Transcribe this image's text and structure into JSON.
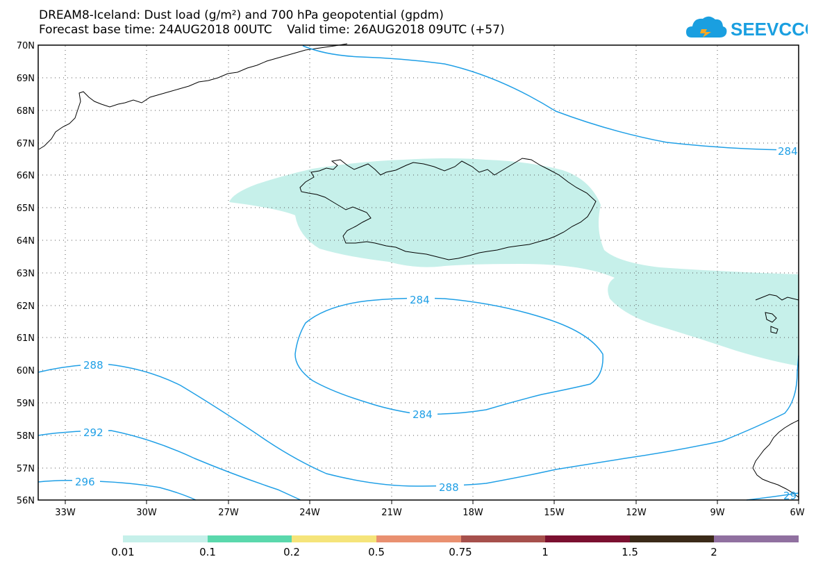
{
  "title_line1": "DREAM8-Iceland: Dust load (g/m²) and 700 hPa geopotential (gpdm)",
  "title_line2": "Forecast base time: 24AUG2018 00UTC    Valid time: 26AUG2018 09UTC (+57)",
  "logo_text": "SEEVCCC",
  "lat_labels": [
    "70N",
    "69N",
    "68N",
    "67N",
    "66N",
    "65N",
    "64N",
    "63N",
    "62N",
    "61N",
    "60N",
    "59N",
    "58N",
    "57N",
    "56N"
  ],
  "lon_labels": [
    "33W",
    "30W",
    "27W",
    "24W",
    "21W",
    "18W",
    "15W",
    "12W",
    "9W",
    "6W"
  ],
  "contour_labels": {
    "c284_north": "284",
    "c284_low_top": "284",
    "c284_low_bottom": "284",
    "c288_left": "288",
    "c288_bottom": "288",
    "c292": "292",
    "c296": "296",
    "c29_right": "29"
  },
  "colorbar": {
    "colors": [
      "#c6f0ea",
      "#5ad8ac",
      "#f5e47a",
      "#e99070",
      "#a6504c",
      "#7b1030",
      "#3b2a18",
      "#9070a0"
    ],
    "labels": [
      "0.01",
      "0.1",
      "0.2",
      "0.5",
      "0.75",
      "1",
      "1.5",
      "2"
    ]
  },
  "colors": {
    "contour": "#1f9fe6",
    "dust_shade": "#c6f0ea",
    "land_outline": "#000000"
  }
}
